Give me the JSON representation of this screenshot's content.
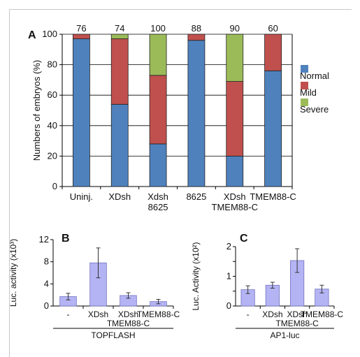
{
  "chart_data": [
    {
      "type": "bar",
      "panel": "A",
      "stacked": true,
      "ylabel": "Numbers of embryos (%)",
      "ylim": [
        0,
        100
      ],
      "yticks": [
        0,
        20,
        40,
        60,
        80,
        100
      ],
      "grid": true,
      "legend_position": "right",
      "categories": [
        [
          "Uninj."
        ],
        [
          "XDsh"
        ],
        [
          "Xdsh",
          "8625"
        ],
        [
          "8625"
        ],
        [
          "XDsh",
          "TMEM88-C"
        ],
        [
          "TMEM88-C"
        ]
      ],
      "top_labels": [
        "76",
        "74",
        "100",
        "88",
        "90",
        "60"
      ],
      "series": [
        {
          "name": "Normal",
          "color": "#4f81bd",
          "values": [
            97,
            54,
            28,
            96,
            20,
            76
          ]
        },
        {
          "name": "Mild",
          "color": "#c0504d",
          "values": [
            3,
            43,
            45,
            4,
            49,
            24
          ]
        },
        {
          "name": "Severe",
          "color": "#9bbb59",
          "values": [
            0,
            3,
            27,
            0,
            31,
            0
          ]
        }
      ]
    },
    {
      "type": "bar",
      "panel": "B",
      "ylabel": "Luc. activity (x10³)",
      "ylim": [
        0,
        12
      ],
      "yticks": [
        0,
        4,
        8,
        12
      ],
      "ytick_labels": [
        "0",
        "4",
        "8",
        "12"
      ],
      "categories": [
        [
          "-"
        ],
        [
          "XDsh"
        ],
        [
          "XDsh",
          "TMEM88-C"
        ],
        [
          "TMEM88-C"
        ]
      ],
      "values": [
        1.7,
        7.8,
        1.9,
        0.8
      ],
      "errors": [
        0.6,
        2.7,
        0.5,
        0.4
      ],
      "group_label": "TOPFLASH",
      "color": "#b4b4f4"
    },
    {
      "type": "bar",
      "panel": "C",
      "ylabel": "Luc. Activity (x10²)",
      "ylim": [
        0,
        2
      ],
      "yticks": [
        0,
        0.5,
        1,
        1.5,
        2
      ],
      "ytick_labels": [
        "0",
        "",
        "1",
        "",
        "2"
      ],
      "categories": [
        [
          "-"
        ],
        [
          "XDsh"
        ],
        [
          "XDsh",
          "TMEM88-C"
        ],
        [
          "TMEM88-C"
        ]
      ],
      "values": [
        0.55,
        0.7,
        1.53,
        0.57
      ],
      "errors": [
        0.13,
        0.1,
        0.4,
        0.13
      ],
      "group_label": "AP1-luc",
      "color": "#b4b4f4"
    }
  ]
}
